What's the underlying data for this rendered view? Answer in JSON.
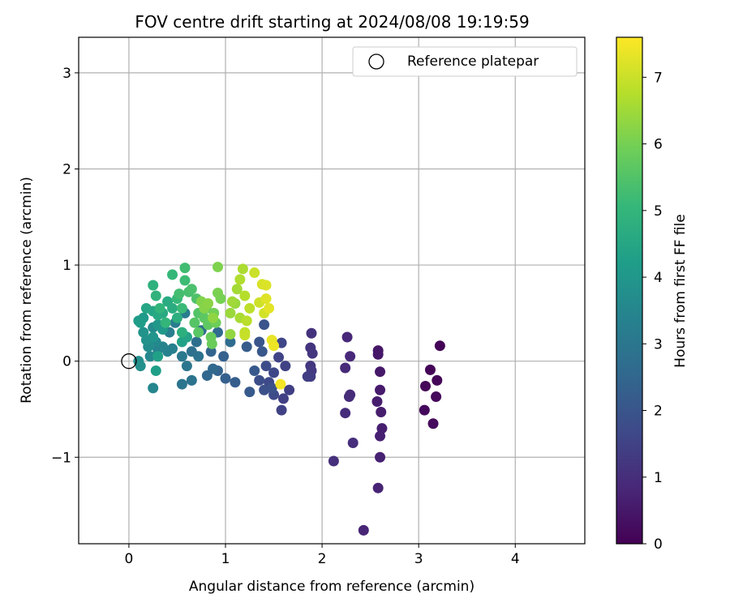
{
  "chart_data": {
    "type": "scatter",
    "title": "FOV centre drift starting at 2024/08/08 19:19:59",
    "xlabel": "Angular distance from reference (arcmin)",
    "ylabel": "Rotation from reference (arcmin)",
    "xlim": [
      -0.52,
      4.72
    ],
    "ylim": [
      -1.9,
      3.37
    ],
    "xticks": [
      0,
      1,
      2,
      3,
      4
    ],
    "xtick_labels": [
      "0",
      "1",
      "2",
      "3",
      "4"
    ],
    "yticks": [
      -1,
      0,
      1,
      2,
      3
    ],
    "ytick_labels": [
      "−1",
      "0",
      "1",
      "2",
      "3"
    ],
    "grid": true,
    "legend": {
      "position": "top-right",
      "entries": [
        "Reference platepar"
      ]
    },
    "reference_point": {
      "x": 0,
      "y": 0,
      "label": "Reference platepar"
    },
    "colorbar": {
      "label": "Hours from first FF file",
      "colormap": "viridis",
      "range": [
        0,
        7.6
      ],
      "ticks": [
        0,
        1,
        2,
        3,
        4,
        5,
        6,
        7
      ],
      "tick_labels": [
        "0",
        "1",
        "2",
        "3",
        "4",
        "5",
        "6",
        "7"
      ]
    },
    "points": [
      [
        3.22,
        0.16,
        0.05
      ],
      [
        3.12,
        -0.09,
        0.08
      ],
      [
        3.19,
        -0.2,
        0.1
      ],
      [
        3.07,
        -0.26,
        0.12
      ],
      [
        3.18,
        -0.37,
        0.15
      ],
      [
        3.06,
        -0.51,
        0.18
      ],
      [
        3.15,
        -0.65,
        0.2
      ],
      [
        2.58,
        0.11,
        0.45
      ],
      [
        2.58,
        0.07,
        0.48
      ],
      [
        2.6,
        -0.11,
        0.5
      ],
      [
        2.6,
        -0.3,
        0.55
      ],
      [
        2.57,
        -0.42,
        0.6
      ],
      [
        2.61,
        -0.53,
        0.62
      ],
      [
        2.62,
        -0.7,
        0.65
      ],
      [
        2.6,
        -0.78,
        0.68
      ],
      [
        2.6,
        -1.0,
        0.7
      ],
      [
        2.58,
        -1.32,
        0.75
      ],
      [
        2.43,
        -1.76,
        0.8
      ],
      [
        2.26,
        0.25,
        0.85
      ],
      [
        2.29,
        0.05,
        0.88
      ],
      [
        2.24,
        -0.07,
        0.9
      ],
      [
        2.29,
        -0.35,
        0.92
      ],
      [
        2.28,
        -0.37,
        0.95
      ],
      [
        2.24,
        -0.54,
        0.98
      ],
      [
        2.32,
        -0.85,
        1.0
      ],
      [
        2.12,
        -1.04,
        1.05
      ],
      [
        1.89,
        0.29,
        1.1
      ],
      [
        1.88,
        0.14,
        1.15
      ],
      [
        1.9,
        0.08,
        1.2
      ],
      [
        1.88,
        -0.05,
        1.25
      ],
      [
        1.89,
        -0.1,
        1.3
      ],
      [
        1.88,
        -0.16,
        1.35
      ],
      [
        1.85,
        -0.16,
        1.4
      ],
      [
        1.66,
        -0.3,
        1.42
      ],
      [
        1.6,
        -0.39,
        1.45
      ],
      [
        1.58,
        -0.51,
        1.48
      ],
      [
        1.62,
        -0.05,
        1.5
      ],
      [
        1.55,
        0.04,
        1.55
      ],
      [
        1.58,
        0.19,
        1.6
      ],
      [
        1.5,
        -0.12,
        1.65
      ],
      [
        1.45,
        -0.22,
        1.7
      ],
      [
        1.5,
        -0.35,
        1.72
      ],
      [
        1.42,
        -0.05,
        1.75
      ],
      [
        1.35,
        -0.2,
        1.8
      ],
      [
        1.4,
        -0.3,
        1.85
      ],
      [
        1.48,
        -0.28,
        1.9
      ],
      [
        1.4,
        0.38,
        1.95
      ],
      [
        1.35,
        0.2,
        2.0
      ],
      [
        1.38,
        0.1,
        2.05
      ],
      [
        1.3,
        -0.1,
        2.1
      ],
      [
        1.25,
        -0.32,
        2.15
      ],
      [
        1.22,
        0.15,
        2.2
      ],
      [
        1.1,
        -0.22,
        2.25
      ],
      [
        1.0,
        -0.18,
        2.3
      ],
      [
        0.98,
        0.05,
        2.35
      ],
      [
        0.92,
        -0.1,
        2.4
      ],
      [
        0.85,
        0.1,
        2.45
      ],
      [
        0.81,
        -0.15,
        2.5
      ],
      [
        0.87,
        -0.08,
        2.55
      ],
      [
        0.92,
        0.3,
        2.6
      ],
      [
        1.05,
        0.2,
        2.65
      ],
      [
        0.75,
        0.32,
        2.7
      ],
      [
        0.7,
        0.2,
        2.75
      ],
      [
        0.65,
        0.1,
        2.8
      ],
      [
        0.72,
        0.05,
        2.85
      ],
      [
        0.65,
        -0.2,
        2.9
      ],
      [
        0.55,
        -0.24,
        2.95
      ],
      [
        0.6,
        -0.05,
        3.0
      ],
      [
        0.55,
        0.05,
        3.05
      ],
      [
        0.6,
        0.25,
        3.1
      ],
      [
        0.58,
        0.5,
        3.15
      ],
      [
        0.48,
        0.4,
        3.2
      ],
      [
        0.42,
        0.3,
        3.25
      ],
      [
        0.45,
        0.13,
        3.3
      ],
      [
        0.4,
        0.1,
        3.35
      ],
      [
        0.35,
        0.15,
        3.4
      ],
      [
        0.3,
        0.12,
        3.45
      ],
      [
        0.25,
        -0.28,
        3.5
      ],
      [
        0.22,
        0.05,
        3.55
      ],
      [
        0.28,
        0.2,
        3.6
      ],
      [
        0.25,
        0.35,
        3.65
      ],
      [
        0.2,
        0.15,
        3.7
      ],
      [
        0.1,
        0.0,
        3.75
      ],
      [
        0.12,
        -0.05,
        3.8
      ],
      [
        0.18,
        0.22,
        3.85
      ],
      [
        0.15,
        0.3,
        3.9
      ],
      [
        0.25,
        0.25,
        3.95
      ],
      [
        0.3,
        0.38,
        4.0
      ],
      [
        0.35,
        0.33,
        4.05
      ],
      [
        0.15,
        0.45,
        4.1
      ],
      [
        0.1,
        0.42,
        4.15
      ],
      [
        0.12,
        0.4,
        4.2
      ],
      [
        0.28,
        -0.1,
        4.25
      ],
      [
        0.3,
        0.05,
        4.3
      ],
      [
        0.55,
        0.2,
        4.35
      ],
      [
        0.6,
        0.25,
        4.4
      ],
      [
        0.18,
        0.55,
        4.45
      ],
      [
        0.25,
        0.52,
        4.5
      ],
      [
        0.3,
        0.48,
        4.55
      ],
      [
        0.35,
        0.5,
        4.6
      ],
      [
        0.4,
        0.62,
        4.65
      ],
      [
        0.45,
        0.55,
        4.7
      ],
      [
        0.5,
        0.45,
        4.75
      ],
      [
        0.55,
        0.3,
        4.8
      ],
      [
        0.25,
        0.79,
        4.85
      ],
      [
        0.28,
        0.68,
        4.9
      ],
      [
        0.32,
        0.55,
        4.95
      ],
      [
        0.38,
        0.4,
        5.0
      ],
      [
        0.45,
        0.9,
        5.05
      ],
      [
        0.5,
        0.65,
        5.1
      ],
      [
        0.55,
        0.55,
        5.15
      ],
      [
        0.58,
        0.84,
        5.2
      ],
      [
        0.58,
        0.97,
        5.25
      ],
      [
        0.52,
        0.7,
        5.3
      ],
      [
        0.62,
        0.72,
        5.35
      ],
      [
        0.65,
        0.75,
        5.4
      ],
      [
        0.7,
        0.65,
        5.45
      ],
      [
        0.72,
        0.5,
        5.5
      ],
      [
        0.68,
        0.4,
        5.55
      ],
      [
        0.72,
        0.3,
        5.6
      ],
      [
        0.78,
        0.45,
        5.65
      ],
      [
        0.82,
        0.38,
        5.7
      ],
      [
        0.8,
        0.55,
        5.75
      ],
      [
        0.85,
        0.25,
        5.8
      ],
      [
        0.86,
        0.18,
        5.85
      ],
      [
        0.9,
        0.4,
        5.9
      ],
      [
        0.88,
        0.5,
        5.95
      ],
      [
        0.95,
        0.65,
        6.0
      ],
      [
        0.92,
        0.71,
        6.05
      ],
      [
        0.92,
        0.98,
        6.1
      ],
      [
        0.75,
        0.62,
        6.15
      ],
      [
        0.78,
        0.55,
        6.2
      ],
      [
        0.82,
        0.6,
        6.25
      ],
      [
        0.87,
        0.45,
        6.3
      ],
      [
        1.05,
        0.28,
        6.35
      ],
      [
        1.1,
        0.6,
        6.4
      ],
      [
        1.05,
        0.5,
        6.45
      ],
      [
        1.07,
        0.62,
        6.5
      ],
      [
        1.12,
        0.75,
        6.55
      ],
      [
        1.15,
        0.45,
        6.6
      ],
      [
        1.18,
        0.96,
        6.65
      ],
      [
        1.15,
        0.85,
        6.7
      ],
      [
        1.2,
        0.68,
        6.75
      ],
      [
        1.22,
        0.42,
        6.8
      ],
      [
        1.25,
        0.55,
        6.85
      ],
      [
        1.2,
        0.3,
        6.9
      ],
      [
        1.2,
        0.27,
        6.95
      ],
      [
        1.3,
        0.92,
        7.0
      ],
      [
        1.35,
        0.61,
        7.05
      ],
      [
        1.4,
        0.5,
        7.1
      ],
      [
        1.38,
        0.8,
        7.15
      ],
      [
        1.42,
        0.79,
        7.2
      ],
      [
        1.42,
        0.65,
        7.25
      ],
      [
        1.45,
        0.55,
        7.3
      ],
      [
        1.48,
        0.22,
        7.35
      ],
      [
        1.5,
        0.16,
        7.4
      ],
      [
        1.57,
        -0.24,
        7.5
      ]
    ]
  }
}
